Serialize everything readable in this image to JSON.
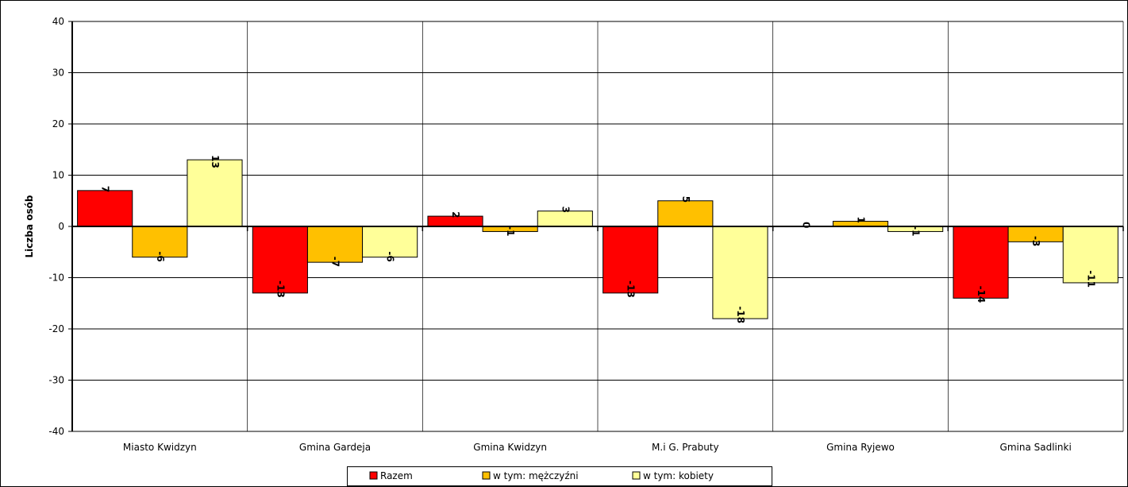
{
  "chart_data": {
    "type": "bar",
    "title": "",
    "xlabel": "",
    "ylabel": "Liczba osób",
    "ylim": [
      -40,
      40
    ],
    "yticks": [
      -40,
      -30,
      -20,
      -10,
      0,
      10,
      20,
      30,
      40
    ],
    "grid": true,
    "legend_position": "bottom",
    "categories": [
      "Miasto Kwidzyn",
      "Gmina Gardeja",
      "Gmina Kwidzyn",
      "M.i G. Prabuty",
      "Gmina Ryjewo",
      "Gmina Sadlinki"
    ],
    "series": [
      {
        "name": "Razem",
        "color": "#ff0000",
        "values": [
          7,
          -13,
          2,
          -13,
          0,
          -14
        ]
      },
      {
        "name": "w tym: mężczyźni",
        "color": "#ffc000",
        "values": [
          -6,
          -7,
          -1,
          5,
          1,
          -3
        ]
      },
      {
        "name": "w tym: kobiety",
        "color": "#ffff99",
        "values": [
          13,
          -6,
          3,
          -18,
          -1,
          -11
        ]
      }
    ]
  }
}
